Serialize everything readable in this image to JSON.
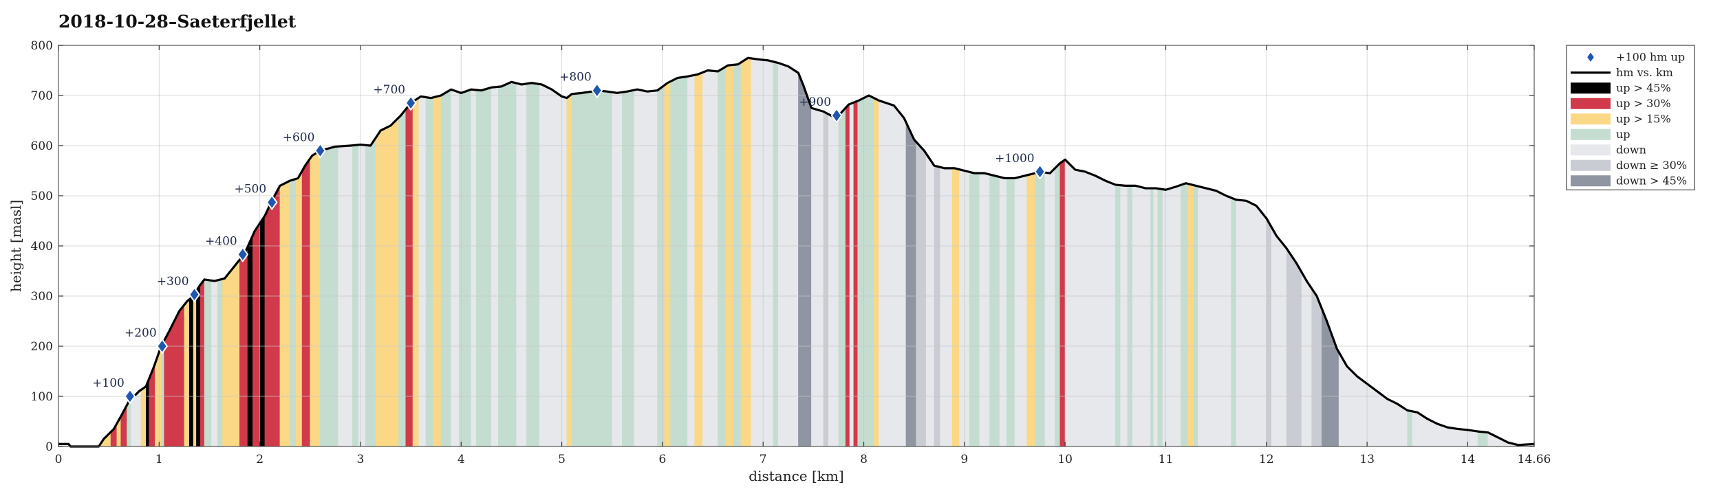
{
  "chart_data": {
    "type": "area",
    "title": "2018-10-28–Saeterfjellet",
    "xlabel": "distance [km]",
    "ylabel": "height [masl]",
    "xlim": [
      0,
      14.66
    ],
    "ylim": [
      0,
      800
    ],
    "xticks": [
      "0",
      "1",
      "2",
      "3",
      "4",
      "5",
      "6",
      "7",
      "8",
      "9",
      "10",
      "11",
      "12",
      "13",
      "14",
      "14.66"
    ],
    "yticks": [
      "0",
      "100",
      "200",
      "300",
      "400",
      "500",
      "600",
      "700",
      "800"
    ],
    "grid": true,
    "legend_position": "outside-top-right",
    "legend": [
      {
        "label": "+100 hm up",
        "kind": "marker",
        "color": "#1f57b0"
      },
      {
        "label": "hm vs. km",
        "kind": "line",
        "color": "#000000"
      },
      {
        "label": "up > 45%",
        "kind": "patch",
        "color": "#000000"
      },
      {
        "label": "up > 30%",
        "kind": "patch",
        "color": "#d13a4a"
      },
      {
        "label": "up > 15%",
        "kind": "patch",
        "color": "#fbd886"
      },
      {
        "label": "up",
        "kind": "patch",
        "color": "#c4ddd0"
      },
      {
        "label": "down",
        "kind": "patch",
        "color": "#e6e8eb"
      },
      {
        "label": "down ≥ 30%",
        "kind": "patch",
        "color": "#c9ccd3"
      },
      {
        "label": "down > 45%",
        "kind": "patch",
        "color": "#8f95a1"
      }
    ],
    "category_colors": {
      "up45": "#000000",
      "up30": "#d13a4a",
      "up15": "#fbd886",
      "up": "#c4ddd0",
      "down": "#e6e8eb",
      "down30": "#c9ccd3",
      "down45": "#8f95a1"
    },
    "profile": [
      [
        0,
        5
      ],
      [
        0.1,
        5
      ],
      [
        0.12,
        0
      ],
      [
        0.4,
        0
      ],
      [
        0.45,
        15
      ],
      [
        0.55,
        35
      ],
      [
        0.62,
        60
      ],
      [
        0.7,
        90
      ],
      [
        0.8,
        110
      ],
      [
        0.87,
        120
      ],
      [
        0.95,
        160
      ],
      [
        1.02,
        200
      ],
      [
        1.1,
        230
      ],
      [
        1.2,
        270
      ],
      [
        1.28,
        290
      ],
      [
        1.34,
        300
      ],
      [
        1.4,
        320
      ],
      [
        1.45,
        333
      ],
      [
        1.55,
        330
      ],
      [
        1.65,
        335
      ],
      [
        1.75,
        360
      ],
      [
        1.85,
        385
      ],
      [
        1.95,
        430
      ],
      [
        2.05,
        460
      ],
      [
        2.12,
        490
      ],
      [
        2.2,
        520
      ],
      [
        2.3,
        530
      ],
      [
        2.38,
        535
      ],
      [
        2.45,
        560
      ],
      [
        2.52,
        580
      ],
      [
        2.6,
        590
      ],
      [
        2.75,
        598
      ],
      [
        2.9,
        600
      ],
      [
        3.0,
        602
      ],
      [
        3.1,
        600
      ],
      [
        3.2,
        630
      ],
      [
        3.3,
        640
      ],
      [
        3.4,
        660
      ],
      [
        3.5,
        685
      ],
      [
        3.6,
        698
      ],
      [
        3.7,
        695
      ],
      [
        3.8,
        700
      ],
      [
        3.9,
        712
      ],
      [
        4.0,
        705
      ],
      [
        4.1,
        712
      ],
      [
        4.2,
        710
      ],
      [
        4.3,
        716
      ],
      [
        4.4,
        718
      ],
      [
        4.5,
        727
      ],
      [
        4.6,
        722
      ],
      [
        4.7,
        725
      ],
      [
        4.8,
        722
      ],
      [
        4.9,
        712
      ],
      [
        5.0,
        698
      ],
      [
        5.05,
        695
      ],
      [
        5.1,
        703
      ],
      [
        5.2,
        705
      ],
      [
        5.3,
        708
      ],
      [
        5.35,
        710
      ],
      [
        5.45,
        708
      ],
      [
        5.55,
        705
      ],
      [
        5.65,
        708
      ],
      [
        5.75,
        712
      ],
      [
        5.85,
        708
      ],
      [
        5.95,
        710
      ],
      [
        6.05,
        725
      ],
      [
        6.15,
        735
      ],
      [
        6.25,
        738
      ],
      [
        6.35,
        742
      ],
      [
        6.45,
        750
      ],
      [
        6.55,
        748
      ],
      [
        6.65,
        760
      ],
      [
        6.75,
        762
      ],
      [
        6.85,
        775
      ],
      [
        6.95,
        772
      ],
      [
        7.05,
        770
      ],
      [
        7.15,
        765
      ],
      [
        7.25,
        758
      ],
      [
        7.35,
        745
      ],
      [
        7.4,
        720
      ],
      [
        7.48,
        675
      ],
      [
        7.6,
        668
      ],
      [
        7.72,
        655
      ],
      [
        7.75,
        660
      ],
      [
        7.85,
        682
      ],
      [
        7.95,
        690
      ],
      [
        8.05,
        700
      ],
      [
        8.15,
        690
      ],
      [
        8.3,
        680
      ],
      [
        8.4,
        655
      ],
      [
        8.5,
        612
      ],
      [
        8.6,
        590
      ],
      [
        8.7,
        560
      ],
      [
        8.8,
        555
      ],
      [
        8.9,
        555
      ],
      [
        9.0,
        550
      ],
      [
        9.1,
        545
      ],
      [
        9.2,
        545
      ],
      [
        9.3,
        540
      ],
      [
        9.4,
        535
      ],
      [
        9.5,
        535
      ],
      [
        9.6,
        540
      ],
      [
        9.7,
        545
      ],
      [
        9.75,
        548
      ],
      [
        9.85,
        545
      ],
      [
        9.95,
        565
      ],
      [
        10.0,
        572
      ],
      [
        10.1,
        552
      ],
      [
        10.2,
        548
      ],
      [
        10.3,
        540
      ],
      [
        10.4,
        530
      ],
      [
        10.5,
        522
      ],
      [
        10.6,
        520
      ],
      [
        10.7,
        520
      ],
      [
        10.8,
        515
      ],
      [
        10.9,
        515
      ],
      [
        11.0,
        512
      ],
      [
        11.1,
        518
      ],
      [
        11.2,
        525
      ],
      [
        11.3,
        520
      ],
      [
        11.4,
        515
      ],
      [
        11.5,
        510
      ],
      [
        11.6,
        500
      ],
      [
        11.7,
        492
      ],
      [
        11.8,
        490
      ],
      [
        11.9,
        480
      ],
      [
        12.0,
        455
      ],
      [
        12.1,
        420
      ],
      [
        12.2,
        395
      ],
      [
        12.3,
        365
      ],
      [
        12.4,
        330
      ],
      [
        12.5,
        300
      ],
      [
        12.6,
        250
      ],
      [
        12.7,
        195
      ],
      [
        12.8,
        160
      ],
      [
        12.9,
        140
      ],
      [
        13.0,
        125
      ],
      [
        13.1,
        110
      ],
      [
        13.2,
        95
      ],
      [
        13.3,
        85
      ],
      [
        13.4,
        72
      ],
      [
        13.5,
        68
      ],
      [
        13.6,
        55
      ],
      [
        13.7,
        45
      ],
      [
        13.8,
        38
      ],
      [
        13.9,
        35
      ],
      [
        14.0,
        33
      ],
      [
        14.1,
        30
      ],
      [
        14.2,
        28
      ],
      [
        14.3,
        18
      ],
      [
        14.4,
        8
      ],
      [
        14.5,
        3
      ],
      [
        14.66,
        5
      ]
    ],
    "segments": [
      [
        0.0,
        0.12,
        "down"
      ],
      [
        0.12,
        0.4,
        "down"
      ],
      [
        0.4,
        0.52,
        "up15"
      ],
      [
        0.52,
        0.58,
        "up30"
      ],
      [
        0.58,
        0.62,
        "up15"
      ],
      [
        0.62,
        0.68,
        "up30"
      ],
      [
        0.68,
        0.72,
        "up"
      ],
      [
        0.72,
        0.82,
        "down"
      ],
      [
        0.82,
        0.87,
        "up15"
      ],
      [
        0.87,
        0.9,
        "up45"
      ],
      [
        0.9,
        0.96,
        "up30"
      ],
      [
        0.96,
        1.02,
        "up15"
      ],
      [
        1.02,
        1.05,
        "up"
      ],
      [
        1.05,
        1.25,
        "up30"
      ],
      [
        1.25,
        1.3,
        "up15"
      ],
      [
        1.3,
        1.34,
        "up45"
      ],
      [
        1.34,
        1.37,
        "up15"
      ],
      [
        1.37,
        1.41,
        "up45"
      ],
      [
        1.41,
        1.45,
        "up30"
      ],
      [
        1.45,
        1.52,
        "up"
      ],
      [
        1.52,
        1.58,
        "down"
      ],
      [
        1.58,
        1.63,
        "up"
      ],
      [
        1.63,
        1.7,
        "up15"
      ],
      [
        1.7,
        1.8,
        "up15"
      ],
      [
        1.8,
        1.88,
        "up30"
      ],
      [
        1.88,
        1.93,
        "up45"
      ],
      [
        1.93,
        2.0,
        "up30"
      ],
      [
        2.0,
        2.05,
        "up45"
      ],
      [
        2.05,
        2.2,
        "up30"
      ],
      [
        2.2,
        2.3,
        "up15"
      ],
      [
        2.3,
        2.36,
        "up"
      ],
      [
        2.36,
        2.42,
        "up15"
      ],
      [
        2.42,
        2.5,
        "up30"
      ],
      [
        2.5,
        2.6,
        "up15"
      ],
      [
        2.6,
        2.78,
        "up"
      ],
      [
        2.78,
        2.92,
        "down"
      ],
      [
        2.92,
        2.98,
        "up"
      ],
      [
        2.98,
        3.05,
        "down"
      ],
      [
        3.05,
        3.15,
        "up"
      ],
      [
        3.15,
        3.25,
        "up15"
      ],
      [
        3.25,
        3.38,
        "up15"
      ],
      [
        3.38,
        3.45,
        "up"
      ],
      [
        3.45,
        3.52,
        "up30"
      ],
      [
        3.52,
        3.58,
        "up15"
      ],
      [
        3.58,
        3.65,
        "down"
      ],
      [
        3.65,
        3.72,
        "up"
      ],
      [
        3.72,
        3.8,
        "up15"
      ],
      [
        3.8,
        3.9,
        "up"
      ],
      [
        3.9,
        3.98,
        "down"
      ],
      [
        3.98,
        4.1,
        "up"
      ],
      [
        4.1,
        4.15,
        "down"
      ],
      [
        4.15,
        4.3,
        "up"
      ],
      [
        4.3,
        4.37,
        "down"
      ],
      [
        4.37,
        4.55,
        "up"
      ],
      [
        4.55,
        4.65,
        "down"
      ],
      [
        4.65,
        4.78,
        "up"
      ],
      [
        4.78,
        5.05,
        "down"
      ],
      [
        5.05,
        5.1,
        "up15"
      ],
      [
        5.1,
        5.5,
        "up"
      ],
      [
        5.5,
        5.6,
        "down"
      ],
      [
        5.6,
        5.72,
        "up"
      ],
      [
        5.72,
        5.95,
        "down"
      ],
      [
        5.95,
        6.02,
        "up"
      ],
      [
        6.02,
        6.08,
        "up15"
      ],
      [
        6.08,
        6.25,
        "up"
      ],
      [
        6.25,
        6.32,
        "down"
      ],
      [
        6.32,
        6.4,
        "up15"
      ],
      [
        6.4,
        6.55,
        "down"
      ],
      [
        6.55,
        6.63,
        "up"
      ],
      [
        6.63,
        6.7,
        "up15"
      ],
      [
        6.7,
        6.78,
        "up"
      ],
      [
        6.78,
        6.88,
        "up15"
      ],
      [
        6.88,
        7.1,
        "down"
      ],
      [
        7.1,
        7.15,
        "up"
      ],
      [
        7.15,
        7.35,
        "down"
      ],
      [
        7.35,
        7.48,
        "down45"
      ],
      [
        7.48,
        7.6,
        "down"
      ],
      [
        7.6,
        7.65,
        "down30"
      ],
      [
        7.65,
        7.75,
        "down"
      ],
      [
        7.75,
        7.82,
        "up"
      ],
      [
        7.82,
        7.86,
        "up30"
      ],
      [
        7.86,
        7.9,
        "down"
      ],
      [
        7.9,
        7.94,
        "up30"
      ],
      [
        7.94,
        8.0,
        "up"
      ],
      [
        8.0,
        8.1,
        "up"
      ],
      [
        8.1,
        8.15,
        "up15"
      ],
      [
        8.15,
        8.42,
        "down"
      ],
      [
        8.42,
        8.52,
        "down45"
      ],
      [
        8.52,
        8.62,
        "down30"
      ],
      [
        8.62,
        8.7,
        "down"
      ],
      [
        8.7,
        8.76,
        "down30"
      ],
      [
        8.76,
        8.88,
        "down"
      ],
      [
        8.88,
        8.95,
        "up15"
      ],
      [
        8.95,
        9.05,
        "down"
      ],
      [
        9.05,
        9.15,
        "up"
      ],
      [
        9.15,
        9.25,
        "down"
      ],
      [
        9.25,
        9.35,
        "up"
      ],
      [
        9.35,
        9.42,
        "down"
      ],
      [
        9.42,
        9.5,
        "up"
      ],
      [
        9.5,
        9.62,
        "down"
      ],
      [
        9.62,
        9.7,
        "up15"
      ],
      [
        9.7,
        9.8,
        "up"
      ],
      [
        9.8,
        9.9,
        "down"
      ],
      [
        9.9,
        9.95,
        "up"
      ],
      [
        9.95,
        10.0,
        "up30"
      ],
      [
        10.0,
        10.5,
        "down"
      ],
      [
        10.5,
        10.55,
        "up"
      ],
      [
        10.55,
        10.62,
        "down"
      ],
      [
        10.62,
        10.67,
        "up"
      ],
      [
        10.67,
        10.85,
        "down"
      ],
      [
        10.85,
        10.88,
        "up"
      ],
      [
        10.88,
        10.92,
        "down"
      ],
      [
        10.92,
        10.97,
        "up"
      ],
      [
        10.97,
        11.15,
        "down"
      ],
      [
        11.15,
        11.22,
        "up"
      ],
      [
        11.22,
        11.28,
        "up15"
      ],
      [
        11.28,
        11.32,
        "up"
      ],
      [
        11.32,
        11.65,
        "down"
      ],
      [
        11.65,
        11.7,
        "up"
      ],
      [
        11.7,
        12.0,
        "down"
      ],
      [
        12.0,
        12.05,
        "down30"
      ],
      [
        12.05,
        12.2,
        "down"
      ],
      [
        12.2,
        12.26,
        "down30"
      ],
      [
        12.26,
        12.35,
        "down30"
      ],
      [
        12.35,
        12.45,
        "down"
      ],
      [
        12.45,
        12.55,
        "down30"
      ],
      [
        12.55,
        12.72,
        "down45"
      ],
      [
        12.72,
        13.4,
        "down"
      ],
      [
        13.4,
        13.45,
        "up"
      ],
      [
        13.45,
        14.1,
        "down"
      ],
      [
        14.1,
        14.2,
        "up"
      ],
      [
        14.2,
        14.66,
        "down"
      ]
    ],
    "markers": [
      {
        "x": 0.71,
        "y": 100,
        "label": "+100"
      },
      {
        "x": 1.03,
        "y": 200,
        "label": "+200"
      },
      {
        "x": 1.35,
        "y": 303,
        "label": "+300"
      },
      {
        "x": 1.83,
        "y": 383,
        "label": "+400"
      },
      {
        "x": 2.12,
        "y": 487,
        "label": "+500"
      },
      {
        "x": 2.6,
        "y": 590,
        "label": "+600"
      },
      {
        "x": 3.5,
        "y": 685,
        "label": "+700"
      },
      {
        "x": 5.35,
        "y": 710,
        "label": "+800"
      },
      {
        "x": 7.73,
        "y": 660,
        "label": "+900"
      },
      {
        "x": 9.75,
        "y": 548,
        "label": "+1000"
      }
    ]
  }
}
